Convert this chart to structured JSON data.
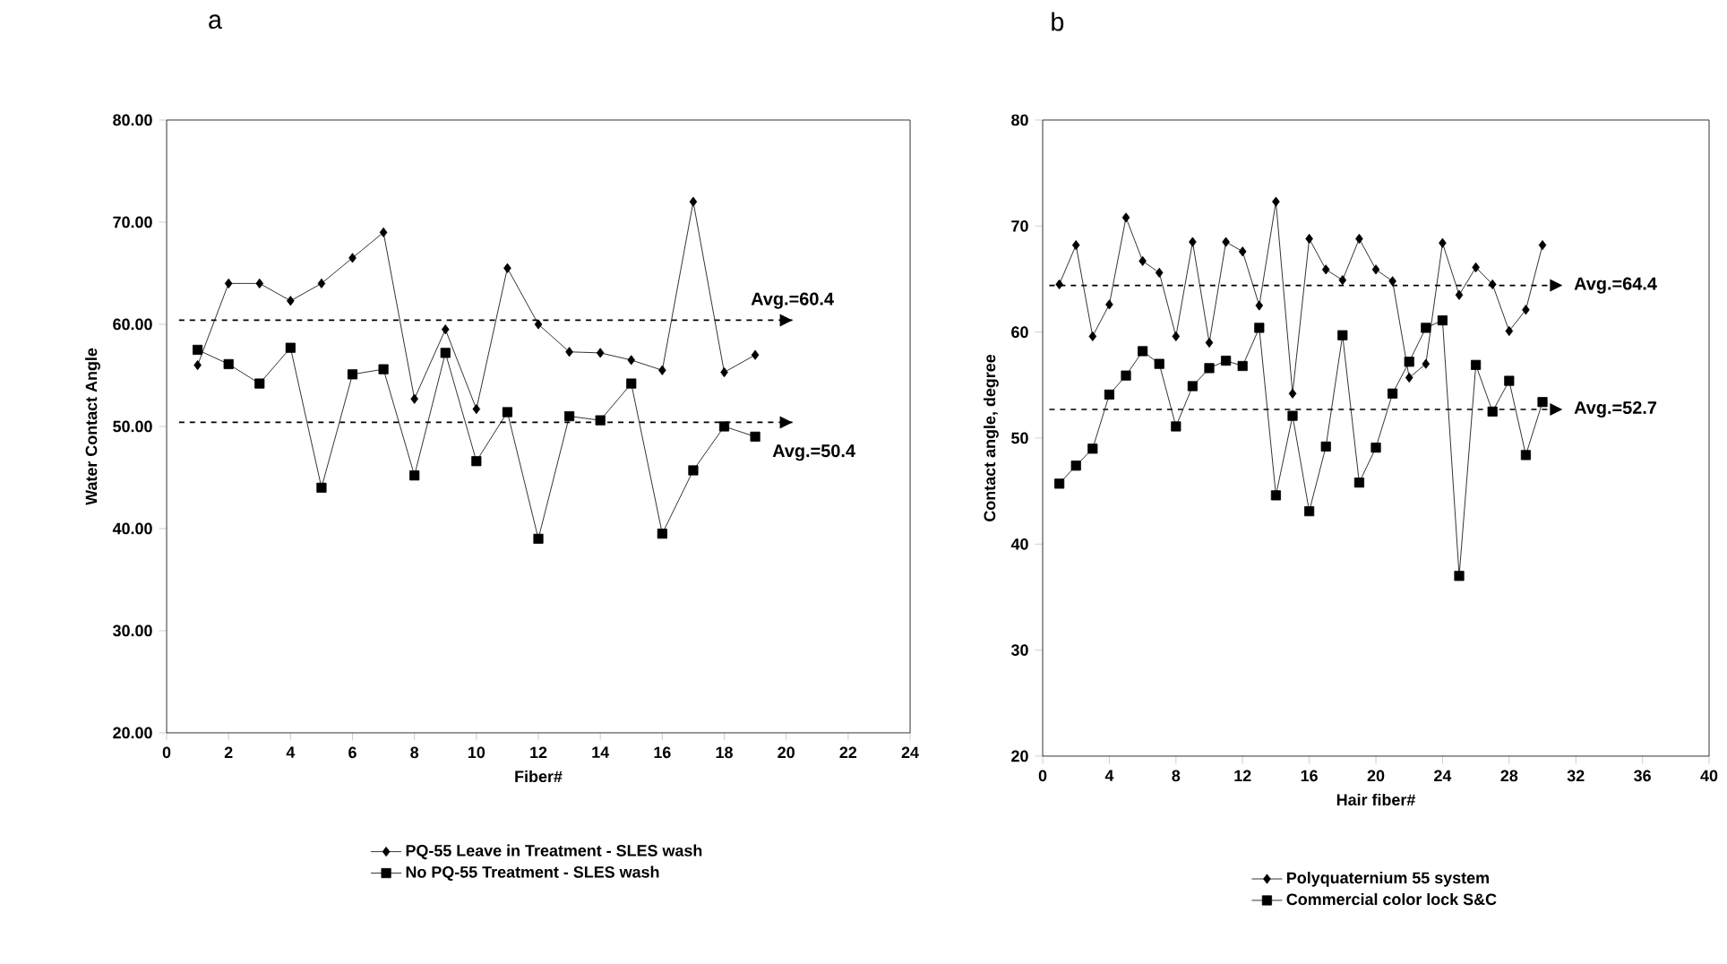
{
  "chart_data": [
    {
      "type": "line",
      "title": "a",
      "xlabel": "Fiber#",
      "ylabel": "Water Contact Angle",
      "x": [
        1,
        2,
        3,
        4,
        5,
        6,
        7,
        8,
        9,
        10,
        11,
        12,
        13,
        14,
        15,
        16,
        17,
        18,
        19
      ],
      "series": [
        {
          "name": "PQ-55 Leave in Treatment - SLES wash",
          "color": "#000000",
          "marker": "diamond",
          "values": [
            56,
            64,
            64,
            62.3,
            64,
            66.5,
            69,
            52.7,
            59.5,
            51.7,
            65.5,
            60,
            57.3,
            57.2,
            56.5,
            55.5,
            72,
            55.3,
            57
          ]
        },
        {
          "name": "No PQ-55 Treatment - SLES wash",
          "color": "#000000",
          "marker": "square",
          "values": [
            57.5,
            56.1,
            54.2,
            57.7,
            44,
            55.1,
            55.6,
            45.2,
            57.2,
            46.6,
            51.4,
            39,
            51,
            50.6,
            54.2,
            39.5,
            45.7,
            50,
            49
          ]
        }
      ],
      "xlim": [
        0,
        24
      ],
      "xticks": [
        0,
        2,
        4,
        6,
        8,
        10,
        12,
        14,
        16,
        18,
        20,
        22,
        24
      ],
      "ylim": [
        20,
        80
      ],
      "yticks": [
        {
          "value": 20,
          "label": "20.00"
        },
        {
          "value": 30,
          "label": "30.00"
        },
        {
          "value": 40,
          "label": "40.00"
        },
        {
          "value": 50,
          "label": "50.00"
        },
        {
          "value": 60,
          "label": "60.00"
        },
        {
          "value": 70,
          "label": "70.00"
        },
        {
          "value": 80,
          "label": "80.00"
        }
      ],
      "ref_lines": [
        {
          "axis": "y",
          "value": 60.4,
          "label": "Avg.=60.4",
          "line_style": "dashed"
        },
        {
          "axis": "y",
          "value": 50.4,
          "label": "Avg.=50.4",
          "line_style": "dashed"
        }
      ],
      "legend": "bottom",
      "grid": false,
      "line_style": "solid"
    },
    {
      "type": "line",
      "title": "b",
      "xlabel": "Hair fiber#",
      "ylabel": "Contact angle, degree",
      "x": [
        1,
        2,
        3,
        4,
        5,
        6,
        7,
        8,
        9,
        10,
        11,
        12,
        13,
        14,
        15,
        16,
        17,
        18,
        19,
        20,
        21,
        22,
        23,
        24,
        25,
        26,
        27,
        28,
        29,
        30
      ],
      "series": [
        {
          "name": "Polyquaternium 55 system",
          "color": "#000000",
          "marker": "diamond",
          "values": [
            64.5,
            68.2,
            59.6,
            62.6,
            70.8,
            66.7,
            65.6,
            59.6,
            68.5,
            59,
            68.5,
            67.6,
            62.5,
            72.3,
            54.2,
            68.8,
            65.9,
            64.9,
            68.8,
            65.9,
            64.8,
            55.7,
            57,
            68.4,
            63.5,
            66.1,
            64.5,
            60.1,
            62.1,
            68.2
          ]
        },
        {
          "name": "Commercial color lock S&C",
          "color": "#000000",
          "marker": "square",
          "values": [
            45.7,
            47.4,
            49,
            54.1,
            55.9,
            58.2,
            57,
            51.1,
            54.9,
            56.6,
            57.3,
            56.8,
            60.4,
            44.6,
            52.1,
            43.1,
            49.2,
            59.7,
            45.8,
            49.1,
            54.2,
            57.2,
            60.4,
            61.1,
            37,
            56.9,
            52.5,
            55.4,
            48.4,
            53.4
          ]
        }
      ],
      "xlim": [
        0,
        40
      ],
      "xticks": [
        0,
        4,
        8,
        12,
        16,
        20,
        24,
        28,
        32,
        36,
        40
      ],
      "ylim": [
        20,
        80
      ],
      "yticks": [
        20,
        30,
        40,
        50,
        60,
        70,
        80
      ],
      "ref_lines": [
        {
          "axis": "y",
          "value": 64.4,
          "label": "Avg.=64.4",
          "line_style": "dashed"
        },
        {
          "axis": "y",
          "value": 52.7,
          "label": "Avg.=52.7",
          "line_style": "dashed"
        }
      ],
      "legend": "bottom",
      "grid": false,
      "line_style": "solid"
    }
  ]
}
